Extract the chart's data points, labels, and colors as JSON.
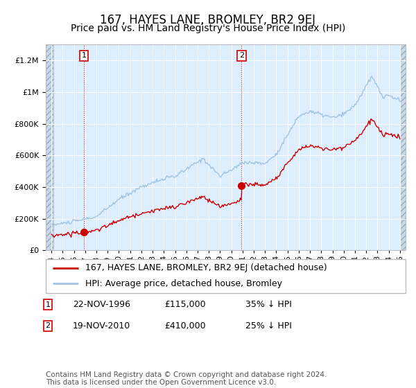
{
  "title": "167, HAYES LANE, BROMLEY, BR2 9EJ",
  "subtitle": "Price paid vs. HM Land Registry's House Price Index (HPI)",
  "ylim": [
    0,
    1300000
  ],
  "yticks": [
    0,
    200000,
    400000,
    600000,
    800000,
    1000000,
    1200000
  ],
  "year_start": 1994,
  "year_end": 2025,
  "hpi_color": "#a0c4e0",
  "price_color": "#cc0000",
  "background_color": "#ffffff",
  "plot_bg_color": "#ddeeff",
  "grid_color": "#ffffff",
  "purchase1_year": 1996.9,
  "purchase1_price": 115000,
  "purchase2_year": 2010.9,
  "purchase2_price": 410000,
  "purchase1_date": "22-NOV-1996",
  "purchase1_amount": "£115,000",
  "purchase1_hpi_pct": "35% ↓ HPI",
  "purchase2_date": "19-NOV-2010",
  "purchase2_amount": "£410,000",
  "purchase2_hpi_pct": "25% ↓ HPI",
  "legend1": "167, HAYES LANE, BROMLEY, BR2 9EJ (detached house)",
  "legend2": "HPI: Average price, detached house, Bromley",
  "footnote": "Contains HM Land Registry data © Crown copyright and database right 2024.\nThis data is licensed under the Open Government Licence v3.0.",
  "title_fontsize": 12,
  "subtitle_fontsize": 10,
  "tick_fontsize": 8,
  "legend_fontsize": 9,
  "table_fontsize": 9,
  "footnote_fontsize": 7.5
}
